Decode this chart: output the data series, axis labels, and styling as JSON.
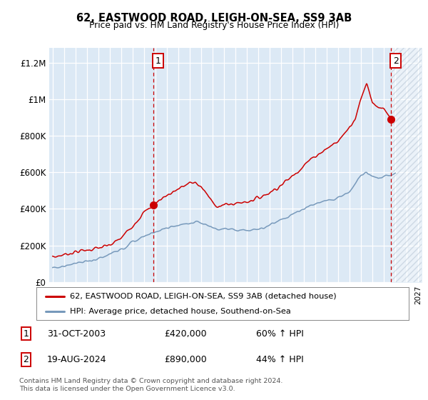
{
  "title": "62, EASTWOOD ROAD, LEIGH-ON-SEA, SS9 3AB",
  "subtitle": "Price paid vs. HM Land Registry's House Price Index (HPI)",
  "legend_line1": "62, EASTWOOD ROAD, LEIGH-ON-SEA, SS9 3AB (detached house)",
  "legend_line2": "HPI: Average price, detached house, Southend-on-Sea",
  "annotation1_date": "31-OCT-2003",
  "annotation1_price": "£420,000",
  "annotation1_hpi": "60% ↑ HPI",
  "annotation2_date": "19-AUG-2024",
  "annotation2_price": "£890,000",
  "annotation2_hpi": "44% ↑ HPI",
  "footnote1": "Contains HM Land Registry data © Crown copyright and database right 2024.",
  "footnote2": "This data is licensed under the Open Government Licence v3.0.",
  "red_color": "#cc0000",
  "blue_color": "#7799bb",
  "background_color": "#dce9f5",
  "ylim_max": 1280000,
  "xlim_min": 1994.7,
  "xlim_max": 2027.3,
  "sale1_x": 2003.83,
  "sale1_y": 420000,
  "sale2_x": 2024.63,
  "sale2_y": 890000,
  "yticks": [
    0,
    200000,
    400000,
    600000,
    800000,
    1000000,
    1200000
  ],
  "ylabels": [
    "£0",
    "£200K",
    "£400K",
    "£600K",
    "£800K",
    "£1M",
    "£1.2M"
  ]
}
